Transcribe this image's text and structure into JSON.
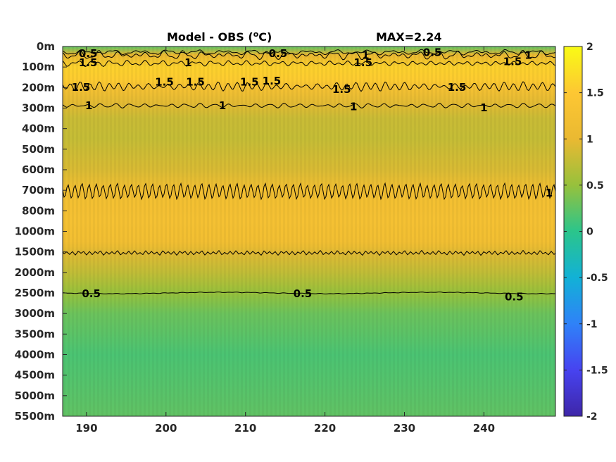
{
  "chart_data": {
    "type": "heatmap",
    "title_left": "Model - OBS (",
    "title_superscript": "o",
    "title_unit": "C)",
    "title_right": "MAX=2.24",
    "x_ticks": [
      190,
      200,
      210,
      220,
      230,
      240
    ],
    "xlim": [
      187,
      249
    ],
    "y_ticks": [
      "0m",
      "100m",
      "200m",
      "300m",
      "400m",
      "500m",
      "600m",
      "700m",
      "800m",
      "1000m",
      "1500m",
      "2000m",
      "2500m",
      "3000m",
      "3500m",
      "4000m",
      "4500m",
      "5000m",
      "5500m"
    ],
    "colorbar_ticks": [
      "2",
      "1.5",
      "1",
      "0.5",
      "0",
      "-0.5",
      "-1",
      "-1.5",
      "-2"
    ],
    "clim": [
      -2,
      2
    ],
    "colormap": [
      "#3e26a8",
      "#4743f0",
      "#2f82f8",
      "#12b1d6",
      "#2bc58b",
      "#97c13c",
      "#eab932",
      "#fdc733",
      "#f9fb15"
    ],
    "depth_profile": [
      {
        "level": 0.0,
        "value": 0.25
      },
      {
        "level": 0.4,
        "value": 1.0
      },
      {
        "level": 1.0,
        "value": 1.6
      },
      {
        "level": 1.6,
        "value": 1.55
      },
      {
        "level": 2.0,
        "value": 1.3
      },
      {
        "level": 2.8,
        "value": 0.95
      },
      {
        "level": 3.5,
        "value": 0.8
      },
      {
        "level": 4.5,
        "value": 0.78
      },
      {
        "level": 6.0,
        "value": 0.9
      },
      {
        "level": 7.0,
        "value": 1.2
      },
      {
        "level": 8.5,
        "value": 1.3
      },
      {
        "level": 9.5,
        "value": 1.2
      },
      {
        "level": 10.0,
        "value": 0.95
      },
      {
        "level": 11.0,
        "value": 0.75
      },
      {
        "level": 12.0,
        "value": 0.5
      },
      {
        "level": 13.0,
        "value": 0.3
      },
      {
        "level": 15.0,
        "value": 0.15
      },
      {
        "level": 18.0,
        "value": 0.25
      }
    ],
    "contour_labels": [
      {
        "text": "0.5",
        "x": 190.2,
        "level": 0.3
      },
      {
        "text": "0.5",
        "x": 214.1,
        "level": 0.3
      },
      {
        "text": "0.5",
        "x": 233.5,
        "level": 0.25
      },
      {
        "text": "1",
        "x": 202.8,
        "level": 0.75
      },
      {
        "text": "1",
        "x": 225.1,
        "level": 0.4
      },
      {
        "text": "1",
        "x": 245.6,
        "level": 0.4
      },
      {
        "text": "1.5",
        "x": 190.2,
        "level": 0.75
      },
      {
        "text": "1.5",
        "x": 224.8,
        "level": 0.75
      },
      {
        "text": "1.5",
        "x": 243.6,
        "level": 0.7
      },
      {
        "text": "1.5",
        "x": 189.3,
        "level": 1.95
      },
      {
        "text": "1.5",
        "x": 199.8,
        "level": 1.7
      },
      {
        "text": "1.5",
        "x": 203.7,
        "level": 1.7
      },
      {
        "text": "1.5",
        "x": 210.5,
        "level": 1.7
      },
      {
        "text": "1.5",
        "x": 213.3,
        "level": 1.65
      },
      {
        "text": "1.5",
        "x": 222.1,
        "level": 2.05
      },
      {
        "text": "1.5",
        "x": 236.6,
        "level": 1.95
      },
      {
        "text": "1",
        "x": 190.3,
        "level": 2.85
      },
      {
        "text": "1",
        "x": 207.1,
        "level": 2.85
      },
      {
        "text": "1",
        "x": 223.6,
        "level": 2.9
      },
      {
        "text": "1",
        "x": 240.0,
        "level": 2.95
      },
      {
        "text": "0.5",
        "x": 190.6,
        "level": 12.0
      },
      {
        "text": "0.5",
        "x": 217.2,
        "level": 12.0
      },
      {
        "text": "0.5",
        "x": 243.8,
        "level": 12.15
      },
      {
        "text": "1",
        "x": 248.2,
        "level": 7.1
      }
    ]
  }
}
